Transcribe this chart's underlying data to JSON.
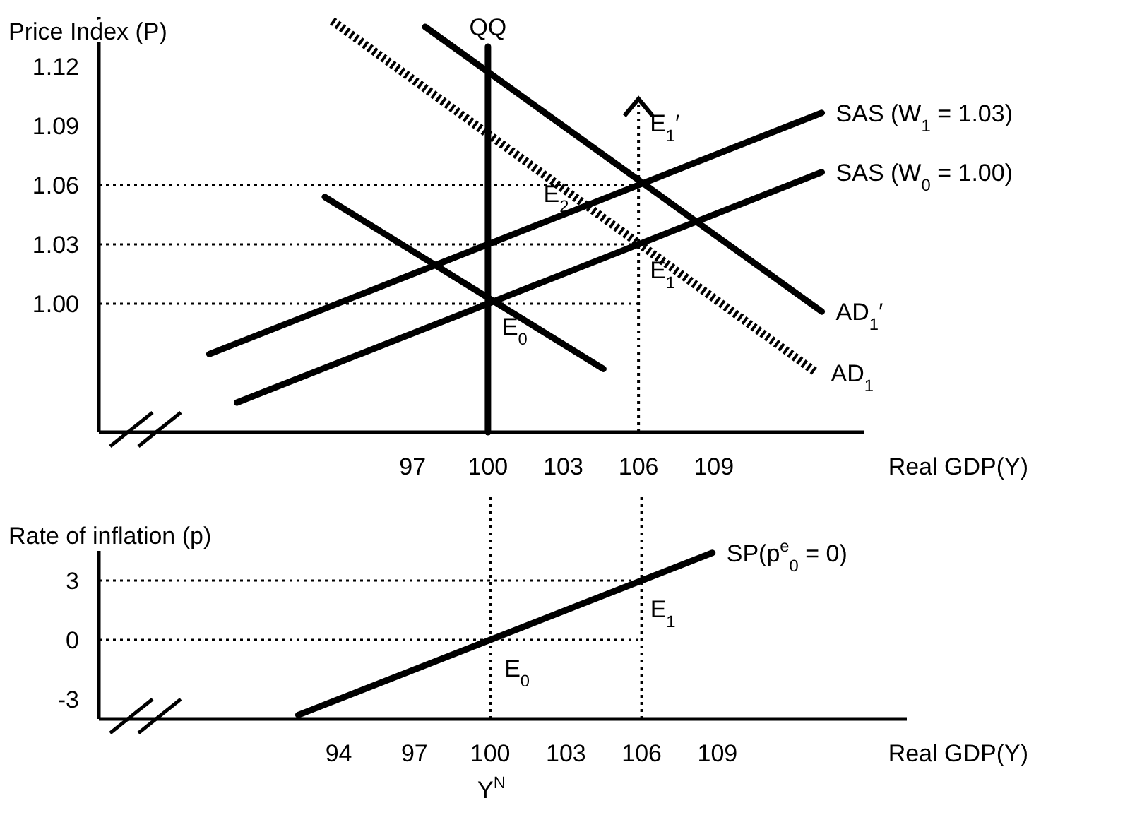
{
  "chart_data": [
    {
      "type": "line",
      "ylabel": "Price Index (P)",
      "xlabel": "Real GDP(Y)",
      "xlim": [
        84.5,
        115
      ],
      "ylim": [
        0.935,
        1.145
      ],
      "xticks": [
        97,
        100,
        103,
        106,
        109
      ],
      "yticks": [
        {
          "value": 1,
          "label": "1.00"
        },
        1.03,
        1.06,
        1.09,
        1.12
      ],
      "grid": false,
      "marker": "none",
      "series": [
        {
          "name": "SAS (W$_{1}$ = 1.03)",
          "color": "#000000",
          "x": [
            88.9,
            113.3
          ],
          "values": [
            0.9745,
            1.0965
          ]
        },
        {
          "name": "SAS (W$_{0}$ = 1.00)",
          "color": "#000000",
          "x": [
            90,
            113.3
          ],
          "values": [
            0.95,
            1.0665
          ]
        },
        {
          "name": "AD$_{1}$′",
          "color": "#000000",
          "x": [
            97.5,
            113.3
          ],
          "values": [
            1.14,
            0.996
          ]
        },
        {
          "name": "AD$_{1}$",
          "color": "#000000",
          "line_style": "dashed",
          "x": [
            93.8,
            113.1
          ],
          "values": [
            1.143,
            0.965
          ]
        },
        {
          "color": "#000000",
          "x": [
            93.5,
            104.6
          ],
          "values": [
            1.054,
            0.967
          ]
        },
        {
          "name": "QQ",
          "color": "#000000",
          "x": [
            100,
            100
          ],
          "values": [
            0.935,
            1.13
          ]
        }
      ],
      "ref_lines": [
        {
          "axis": "y",
          "value": 1.0,
          "line_style": "dotted"
        },
        {
          "axis": "y",
          "value": 1.03,
          "line_style": "dotted"
        },
        {
          "axis": "y",
          "value": 1.06,
          "line_style": "dotted"
        },
        {
          "axis": "x",
          "value": 106,
          "line_style": "dotted"
        }
      ],
      "annotations": [
        {
          "text": "E$_{0}$",
          "x": 100,
          "y": 1.0
        },
        {
          "text": "E$_{1}$",
          "x": 106,
          "y": 1.03
        },
        {
          "text": "E$_{1}$′",
          "x": 106,
          "y": 1.06
        },
        {
          "text": "E$_{2}$",
          "x": 103.9,
          "y": 1.05
        }
      ]
    },
    {
      "type": "line",
      "ylabel": "Rate of inflation (p)",
      "xlabel": "Real GDP(Y)",
      "xlim": [
        84.5,
        116.5
      ],
      "ylim": [
        -4,
        4.5
      ],
      "xticks": [
        94,
        97,
        100,
        103,
        106,
        109
      ],
      "yticks": [
        -3,
        0,
        3
      ],
      "grid": false,
      "marker": "none",
      "series": [
        {
          "name": "SP(p$^{e}$$_{0}$ = 0)",
          "color": "#000000",
          "x": [
            92.4,
            108.8
          ],
          "values": [
            -3.8,
            4.4
          ]
        }
      ],
      "ref_lines": [
        {
          "axis": "y",
          "value": 0,
          "line_style": "dotted"
        },
        {
          "axis": "y",
          "value": 3,
          "line_style": "dotted"
        },
        {
          "axis": "x",
          "value": 100,
          "line_style": "dotted"
        },
        {
          "axis": "x",
          "value": 106,
          "line_style": "dotted"
        }
      ],
      "annotations": [
        {
          "text": "E$_{0}$",
          "x": 100,
          "y": 0
        },
        {
          "text": "E$_{1}$",
          "x": 106,
          "y": 3
        },
        "Y$^{N}$"
      ]
    }
  ]
}
